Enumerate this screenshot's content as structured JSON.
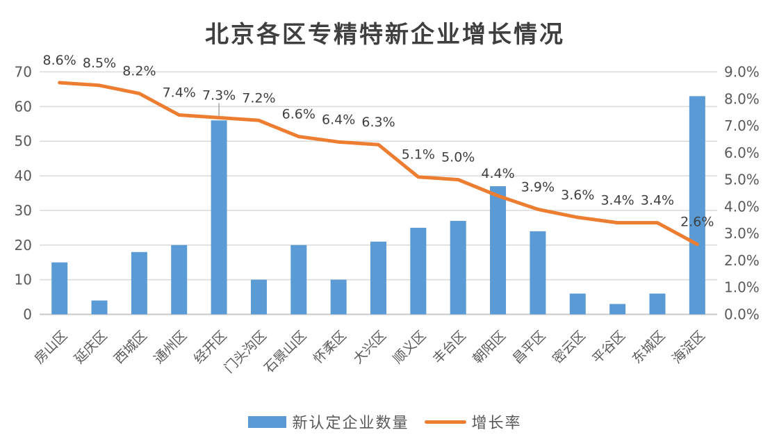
{
  "chart_data": {
    "type": "bar+line",
    "title": "北京各区专精特新企业增长情况",
    "categories": [
      "房山区",
      "延庆区",
      "西城区",
      "通州区",
      "经开区",
      "门头沟区",
      "石景山区",
      "怀柔区",
      "大兴区",
      "顺义区",
      "丰台区",
      "朝阳区",
      "昌平区",
      "密云区",
      "平谷区",
      "东城区",
      "海淀区"
    ],
    "series": [
      {
        "name": "新认定企业数量",
        "type": "bar",
        "axis": "left",
        "color": "#5B9BD5",
        "values": [
          15,
          4,
          18,
          20,
          56,
          10,
          20,
          10,
          21,
          25,
          27,
          37,
          24,
          6,
          3,
          6,
          63
        ]
      },
      {
        "name": "增长率",
        "type": "line",
        "axis": "right",
        "color": "#ED7D31",
        "values_percent": [
          8.6,
          8.5,
          8.2,
          7.4,
          7.3,
          7.2,
          6.6,
          6.4,
          6.3,
          5.1,
          5.0,
          4.4,
          3.9,
          3.6,
          3.4,
          3.4,
          2.6
        ],
        "data_labels": [
          "8.6%",
          "8.5%",
          "8.2%",
          "7.4%",
          "7.3%",
          "7.2%",
          "6.6%",
          "6.4%",
          "6.3%",
          "5.1%",
          "5.0%",
          "4.4%",
          "3.9%",
          "3.6%",
          "3.4%",
          "3.4%",
          "2.6%"
        ],
        "label_leader_line_at_index": 4
      }
    ],
    "left_axis": {
      "min": 0,
      "max": 70,
      "step": 10,
      "tick_labels": [
        "0",
        "10",
        "20",
        "30",
        "40",
        "50",
        "60",
        "70"
      ]
    },
    "right_axis": {
      "min": 0,
      "max": 9,
      "step": 1,
      "tick_labels": [
        "0.0%",
        "1.0%",
        "2.0%",
        "3.0%",
        "4.0%",
        "5.0%",
        "6.0%",
        "7.0%",
        "8.0%",
        "9.0%"
      ]
    },
    "grid": true,
    "legend_position": "bottom"
  },
  "colors": {
    "bar": "#5B9BD5",
    "line": "#ED7D31",
    "gridline": "#D9D9D9",
    "axis_line": "#C9C9C9",
    "tick_text": "#595959",
    "data_label_text": "#3F3F3F",
    "title_text": "#3F3F3F",
    "leader_line": "#A6A6A6",
    "background": "#FFFFFF"
  }
}
